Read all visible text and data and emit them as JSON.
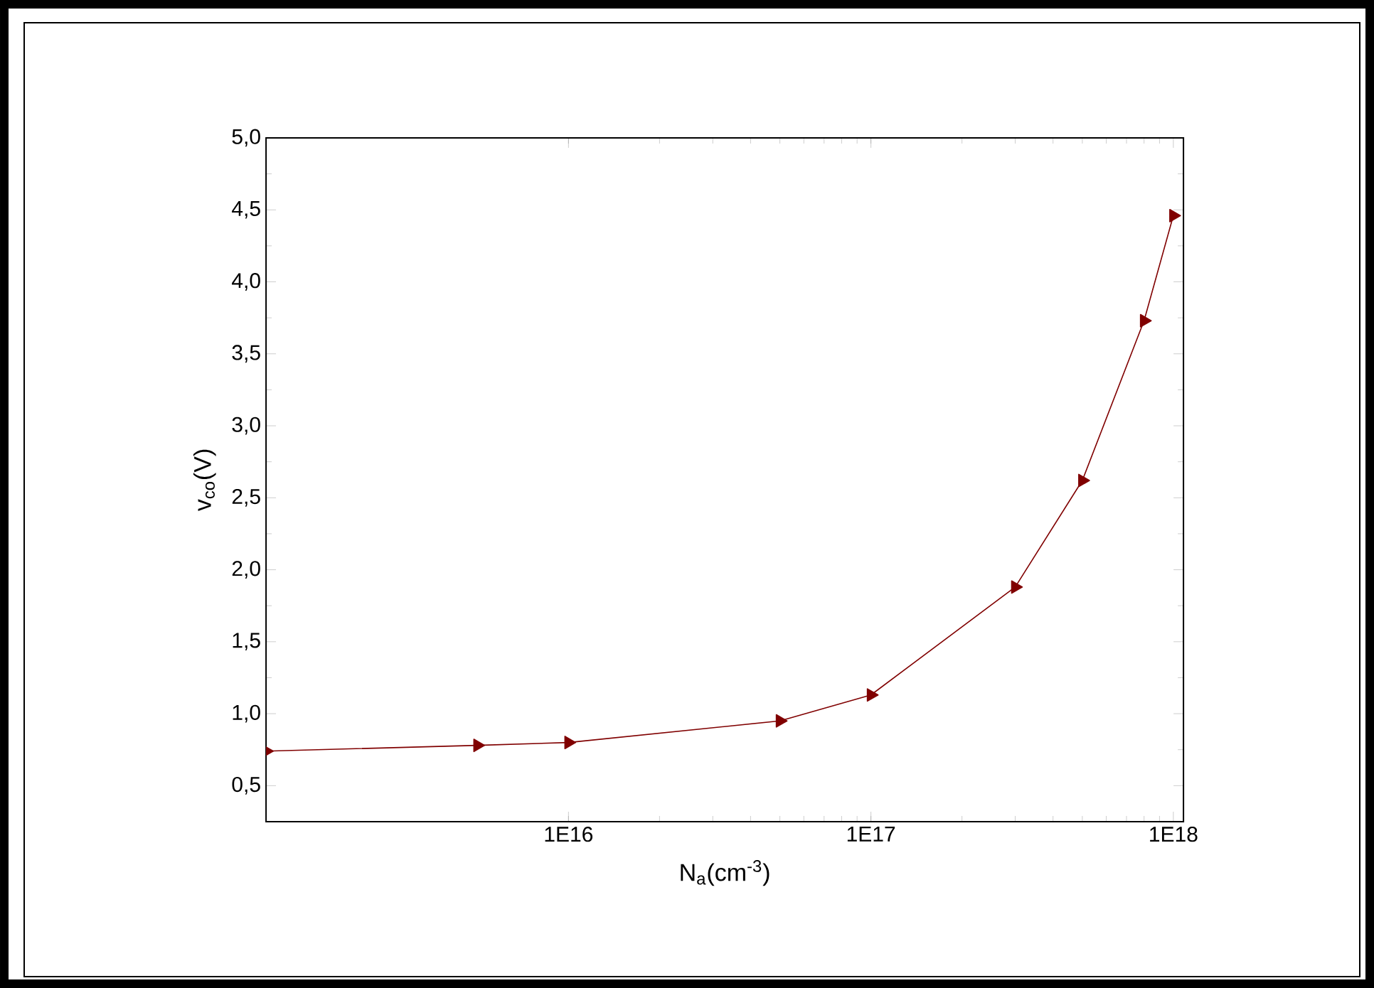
{
  "chart_data": {
    "type": "line",
    "xlabel": "N$_{a}$(cm$^{-3}$)",
    "ylabel": "v$_{co}$(V)",
    "x": [
      1000000000000000.0,
      5000000000000000.0,
      1e+16,
      5e+16,
      1e+17,
      3e+17,
      5e+17,
      8e+17,
      1e+18
    ],
    "series": [
      {
        "color": "#800000",
        "values": [
          0.74,
          0.78,
          0.8,
          0.95,
          1.13,
          1.88,
          2.62,
          3.73,
          4.46
        ]
      }
    ],
    "log": "x",
    "marker": "triangle",
    "line_style": "solid",
    "grid": false,
    "xlim": [
      1000000000000000.0,
      1.08e+18
    ],
    "xticks": [
      {
        "value": 1e+16,
        "label": "1E16"
      },
      {
        "value": 1e+17,
        "label": "1E17"
      },
      {
        "value": 1e+18,
        "label": "1E18"
      }
    ],
    "ylim": [
      0.25,
      5.0
    ],
    "yticks": [
      {
        "value": 0.5,
        "label": "0,5"
      },
      {
        "value": 1.0,
        "label": "1,0"
      },
      {
        "value": 1.5,
        "label": "1,5"
      },
      {
        "value": 2.0,
        "label": "2,0"
      },
      {
        "value": 2.5,
        "label": "2,5"
      },
      {
        "value": 3.0,
        "label": "3,0"
      },
      {
        "value": 3.5,
        "label": "3,5"
      },
      {
        "value": 4.0,
        "label": "4,0"
      },
      {
        "value": 4.5,
        "label": "4,5"
      },
      {
        "value": 5.0,
        "label": "5,0"
      }
    ]
  }
}
